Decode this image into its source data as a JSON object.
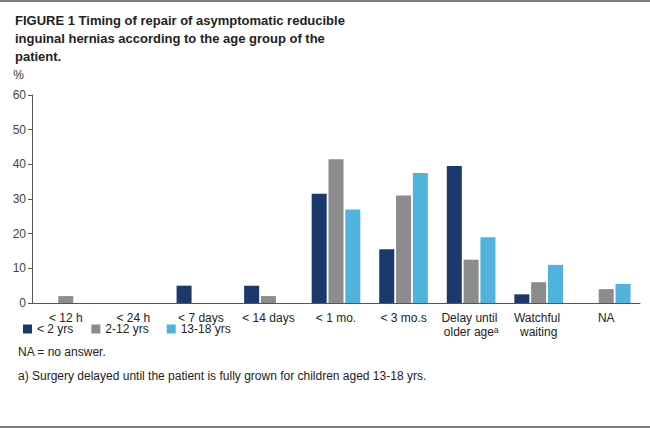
{
  "chart_data": {
    "type": "bar",
    "title": "FIGURE 1 Timing of repair of asymptomatic reducible inguinal hernias according to the age group of the patient.",
    "y_label": "%",
    "categories": [
      "< 12 h",
      "< 24 h",
      "< 7 days",
      "< 14 days",
      "< 1 mo.",
      "< 3 mo.s",
      "Delay until older ageᵃ",
      "Watchful waiting",
      "NA"
    ],
    "series": [
      {
        "name": "< 2 yrs",
        "color": "#1b3a6b",
        "values": [
          0,
          0,
          5,
          5,
          31.5,
          15.5,
          39.5,
          2.5,
          0
        ]
      },
      {
        "name": "2-12 yrs",
        "color": "#8c8c8c",
        "values": [
          2,
          0,
          0,
          2,
          41.5,
          31,
          12.5,
          6,
          4
        ]
      },
      {
        "name": "13-18 yrs",
        "color": "#4fb3dd",
        "values": [
          0,
          0,
          0,
          0,
          27,
          37.5,
          19,
          11,
          5.5
        ]
      }
    ],
    "ylim": [
      0,
      60
    ],
    "yticks": [
      0,
      10,
      20,
      30,
      40,
      50,
      60
    ],
    "grid": false,
    "legend": "bottom-left",
    "annotations": [
      "NA = no answer.",
      "a) Surgery delayed until the patient is fully grown for children aged 13-18 yrs."
    ]
  }
}
